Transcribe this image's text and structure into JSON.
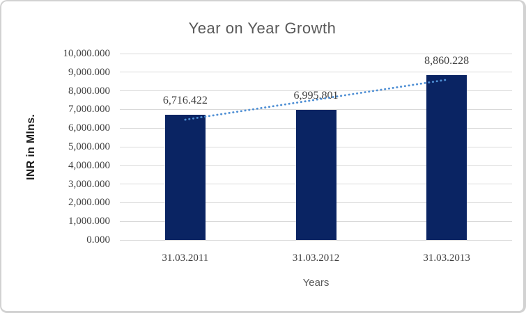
{
  "chart_data": {
    "type": "bar",
    "title": "Year on Year Growth",
    "xlabel": "Years",
    "ylabel": "INR in Mlns.",
    "categories": [
      "31.03.2011",
      "31.03.2012",
      "31.03.2013"
    ],
    "values": [
      6716.422,
      6995.801,
      8860.228
    ],
    "data_labels": [
      "6,716.422",
      "6,995.801",
      "8,860.228"
    ],
    "ylim": [
      0,
      10000
    ],
    "ytick_step": 1000,
    "ytick_labels": [
      "0.000",
      "1,000.000",
      "2,000.000",
      "3,000.000",
      "4,000.000",
      "5,000.000",
      "6,000.000",
      "7,000.000",
      "8,000.000",
      "9,000.000",
      "10,000.000"
    ],
    "grid": true,
    "legend": false,
    "trendline": {
      "type": "linear",
      "style": "dotted"
    },
    "colors": {
      "bar": "#0a2463",
      "trendline": "#4f8fd4",
      "gridline": "#d9d9d9",
      "title_text": "#595959",
      "tick_text": "#404040",
      "data_label_text": "#404040",
      "x_axis_title_text": "#595959",
      "y_axis_title_text": "#1a1a1a",
      "frame_border": "#d2d2d2"
    }
  }
}
